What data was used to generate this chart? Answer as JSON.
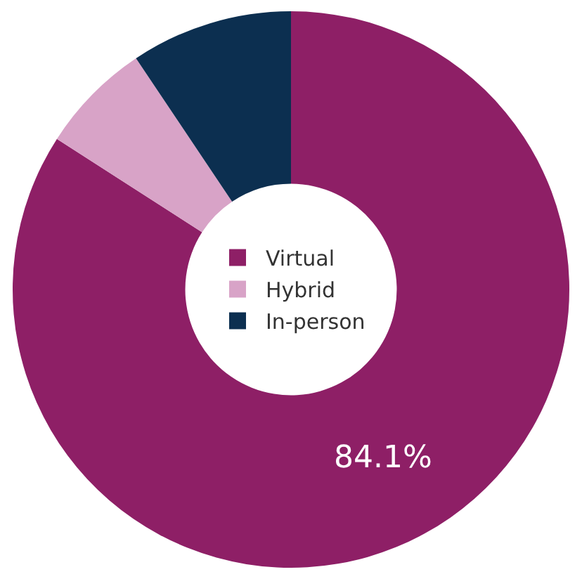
{
  "chart_data": {
    "type": "donut",
    "categories": [
      "Virtual",
      "Hybrid",
      "In-person"
    ],
    "values": [
      84.1,
      6.5,
      9.4
    ],
    "colors": [
      "#8e1f66",
      "#d8a3c7",
      "#0c2f50"
    ],
    "value_labels": [
      "84.1%",
      null,
      null
    ],
    "legend": "center"
  }
}
